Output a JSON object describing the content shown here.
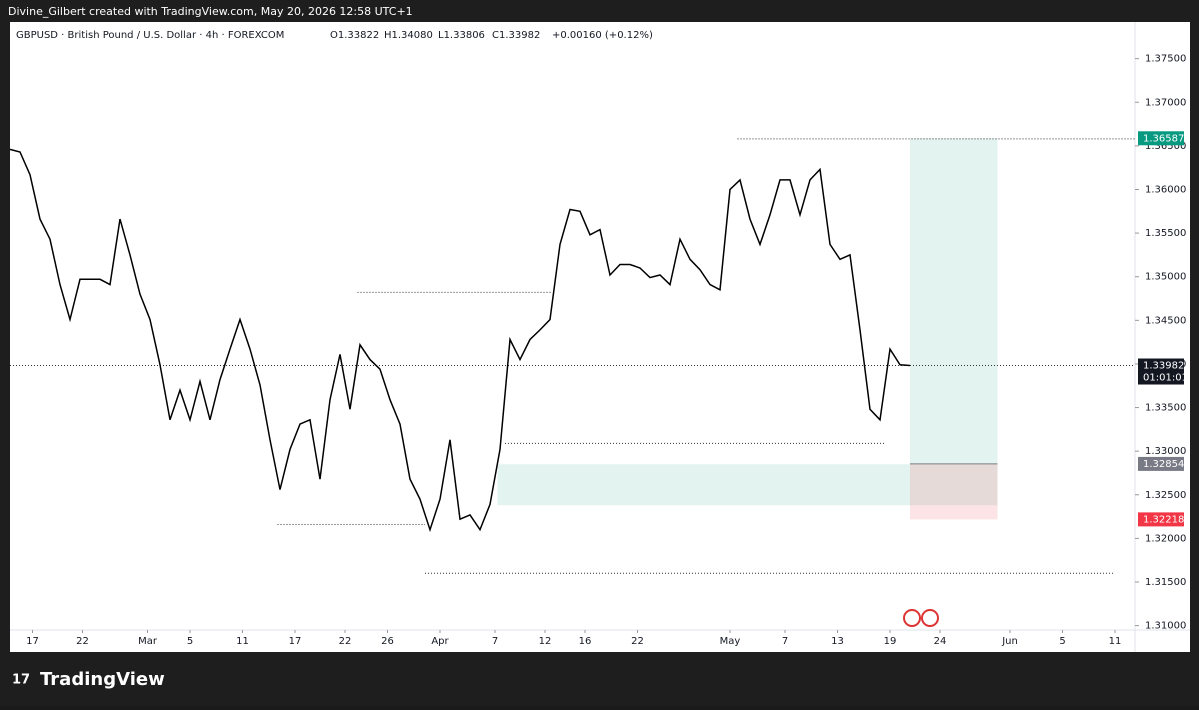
{
  "header": {
    "credit": "Divine_Gilbert created with TradingView.com, May 20, 2026 12:58 UTC+1"
  },
  "footer": {
    "brand": "TradingView"
  },
  "chart_data": {
    "type": "line",
    "symbol": "GBPUSD · British Pound / U.S. Dollar · 4h · FOREXCOM",
    "ohlc": [
      "O1.33822",
      "H1.34080",
      "L1.33806",
      "C1.33982",
      "+0.00160 (+0.12%)"
    ],
    "countdown": "01:01:01",
    "series": [
      {
        "name": "GBPUSD",
        "color": "#000000",
        "x": [
          0,
          4,
          8,
          12,
          16,
          20,
          24,
          28,
          32,
          36,
          40,
          44,
          48,
          52,
          56,
          60,
          64,
          68,
          72,
          76,
          80,
          84,
          88,
          92,
          96,
          100,
          104,
          108,
          112,
          116,
          120,
          124,
          128,
          132,
          136,
          140,
          144,
          148,
          152,
          156,
          160,
          164,
          168,
          172,
          176,
          180,
          184,
          188,
          192,
          196,
          200,
          204,
          208,
          212,
          216,
          220,
          224,
          228,
          232,
          236,
          240,
          244,
          248,
          252,
          256,
          260,
          264,
          268,
          272,
          276,
          280,
          284,
          288,
          292,
          296,
          300,
          304,
          308,
          312,
          316,
          320,
          324,
          328,
          332,
          336,
          340,
          344,
          348,
          352,
          356,
          360
        ],
        "values": [
          1.3646,
          1.3643,
          1.3617,
          1.3566,
          1.3543,
          1.3491,
          1.3451,
          1.3497,
          1.3497,
          1.3497,
          1.3491,
          1.3566,
          1.3525,
          1.348,
          1.3451,
          1.3399,
          1.3336,
          1.337,
          1.3336,
          1.338,
          1.3336,
          1.3382,
          1.3417,
          1.3451,
          1.3417,
          1.3376,
          1.3313,
          1.3256,
          1.3302,
          1.3331,
          1.3336,
          1.3268,
          1.3359,
          1.3411,
          1.3348,
          1.3422,
          1.3405,
          1.3394,
          1.3359,
          1.3331,
          1.3268,
          1.3245,
          1.321,
          1.3245,
          1.3313,
          1.3222,
          1.3227,
          1.321,
          1.3239,
          1.3302,
          1.3428,
          1.3405,
          1.3428,
          1.3439,
          1.3451,
          1.3537,
          1.3577,
          1.3575,
          1.3548,
          1.3554,
          1.3502,
          1.3514,
          1.3514,
          1.351,
          1.3499,
          1.3502,
          1.3491,
          1.3543,
          1.352,
          1.3508,
          1.3491,
          1.3485,
          1.36,
          1.3611,
          1.3566,
          1.3537,
          1.3571,
          1.3611,
          1.3611,
          1.3571,
          1.3611,
          1.3623,
          1.3537,
          1.352,
          1.3525,
          1.3439,
          1.3348,
          1.3336,
          1.3417,
          1.3399,
          1.33982
        ]
      }
    ],
    "xlim": [
      0,
      450
    ],
    "xticks": [
      {
        "value": 9,
        "label": "17"
      },
      {
        "value": 29,
        "label": "22"
      },
      {
        "value": 55,
        "label": "Mar"
      },
      {
        "value": 72,
        "label": "5"
      },
      {
        "value": 93,
        "label": "11"
      },
      {
        "value": 114,
        "label": "17"
      },
      {
        "value": 134,
        "label": "22"
      },
      {
        "value": 151,
        "label": "26"
      },
      {
        "value": 172,
        "label": "Apr"
      },
      {
        "value": 194,
        "label": "7"
      },
      {
        "value": 214,
        "label": "12"
      },
      {
        "value": 230,
        "label": "16"
      },
      {
        "value": 251,
        "label": "22"
      },
      {
        "value": 288,
        "label": "May"
      },
      {
        "value": 310,
        "label": "7"
      },
      {
        "value": 331,
        "label": "13"
      },
      {
        "value": 352,
        "label": "19"
      },
      {
        "value": 372,
        "label": "24"
      },
      {
        "value": 400,
        "label": "Jun"
      },
      {
        "value": 421,
        "label": "5"
      },
      {
        "value": 442,
        "label": "11"
      }
    ],
    "ylim": [
      1.3095,
      1.3792
    ],
    "yticks": [
      {
        "value": 1.375,
        "label": "1.37500"
      },
      {
        "value": 1.37,
        "label": "1.37000"
      },
      {
        "value": 1.365,
        "label": "1.36500"
      },
      {
        "value": 1.36,
        "label": "1.36000"
      },
      {
        "value": 1.355,
        "label": "1.35500"
      },
      {
        "value": 1.35,
        "label": "1.35000"
      },
      {
        "value": 1.345,
        "label": "1.34500"
      },
      {
        "value": 1.34,
        "label": "1.34000"
      },
      {
        "value": 1.335,
        "label": "1.33500"
      },
      {
        "value": 1.33,
        "label": "1.33000"
      },
      {
        "value": 1.325,
        "label": "1.32500"
      },
      {
        "value": 1.32,
        "label": "1.32000"
      },
      {
        "value": 1.315,
        "label": "1.31500"
      },
      {
        "value": 1.31,
        "label": "1.31000"
      }
    ],
    "levels": [
      {
        "y": 1.3658,
        "x": [
          291,
          450
        ]
      },
      {
        "y": 1.3482,
        "x": [
          139,
          217
        ]
      },
      {
        "y": 1.3309,
        "x": [
          198,
          350
        ]
      },
      {
        "y": 1.3216,
        "x": [
          107,
          166
        ]
      },
      {
        "y": 1.316,
        "x": [
          166,
          442
        ]
      },
      {
        "y": 1.33982,
        "x": [
          0,
          450
        ]
      }
    ],
    "zone": {
      "y": [
        1.3285,
        1.3238
      ],
      "x": [
        195,
        360
      ],
      "color": "#e3f3f0"
    },
    "position": {
      "target": 1.36587,
      "entry": 1.32854,
      "stop": 1.32218,
      "x": [
        360,
        395
      ],
      "profit_color": "#e3f3f0",
      "loss_color": "#fbe3e6"
    }
  }
}
